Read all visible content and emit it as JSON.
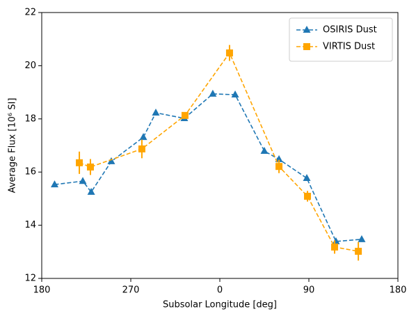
{
  "chart_data": {
    "type": "line",
    "xlabel": "Subsolar Longitude [deg]",
    "ylabel": "Average Flux [10⁶ SI]",
    "xlim": [
      180,
      540
    ],
    "xticks": [
      180,
      270,
      {
        "value": 360,
        "label": "0"
      },
      {
        "value": 450,
        "label": "90"
      },
      {
        "value": 540,
        "label": "180"
      }
    ],
    "ylim": [
      12,
      22
    ],
    "yticks": [
      12,
      14,
      16,
      18,
      20,
      22
    ],
    "legend": "upper right",
    "series": [
      {
        "name": "OSIRIS Dust",
        "color": "#1f77b4",
        "marker": "triangle",
        "x": [
          193,
          221.5,
          230,
          250.3,
          282.7,
          295.3,
          324.1,
          352.9,
          375.5,
          405,
          419.8,
          447.9,
          477.4,
          503.4
        ],
        "values": [
          15.53,
          15.66,
          15.25,
          16.4,
          17.31,
          18.23,
          18.02,
          18.94,
          18.91,
          16.79,
          16.48,
          15.77,
          13.39,
          13.47
        ]
      },
      {
        "name": "VIRTIS Dust",
        "color": "#ffa500",
        "marker": "square",
        "x": [
          218,
          229.2,
          281.2,
          324.8,
          369.8,
          419.8,
          448.6,
          476,
          500
        ],
        "values": [
          16.35,
          16.19,
          16.87,
          18.13,
          20.48,
          16.21,
          15.09,
          13.18,
          13.02
        ],
        "errors": [
          0.42,
          0.3,
          0.35,
          0.1,
          0.3,
          0.25,
          0.2,
          0.25,
          0.35
        ]
      }
    ]
  }
}
